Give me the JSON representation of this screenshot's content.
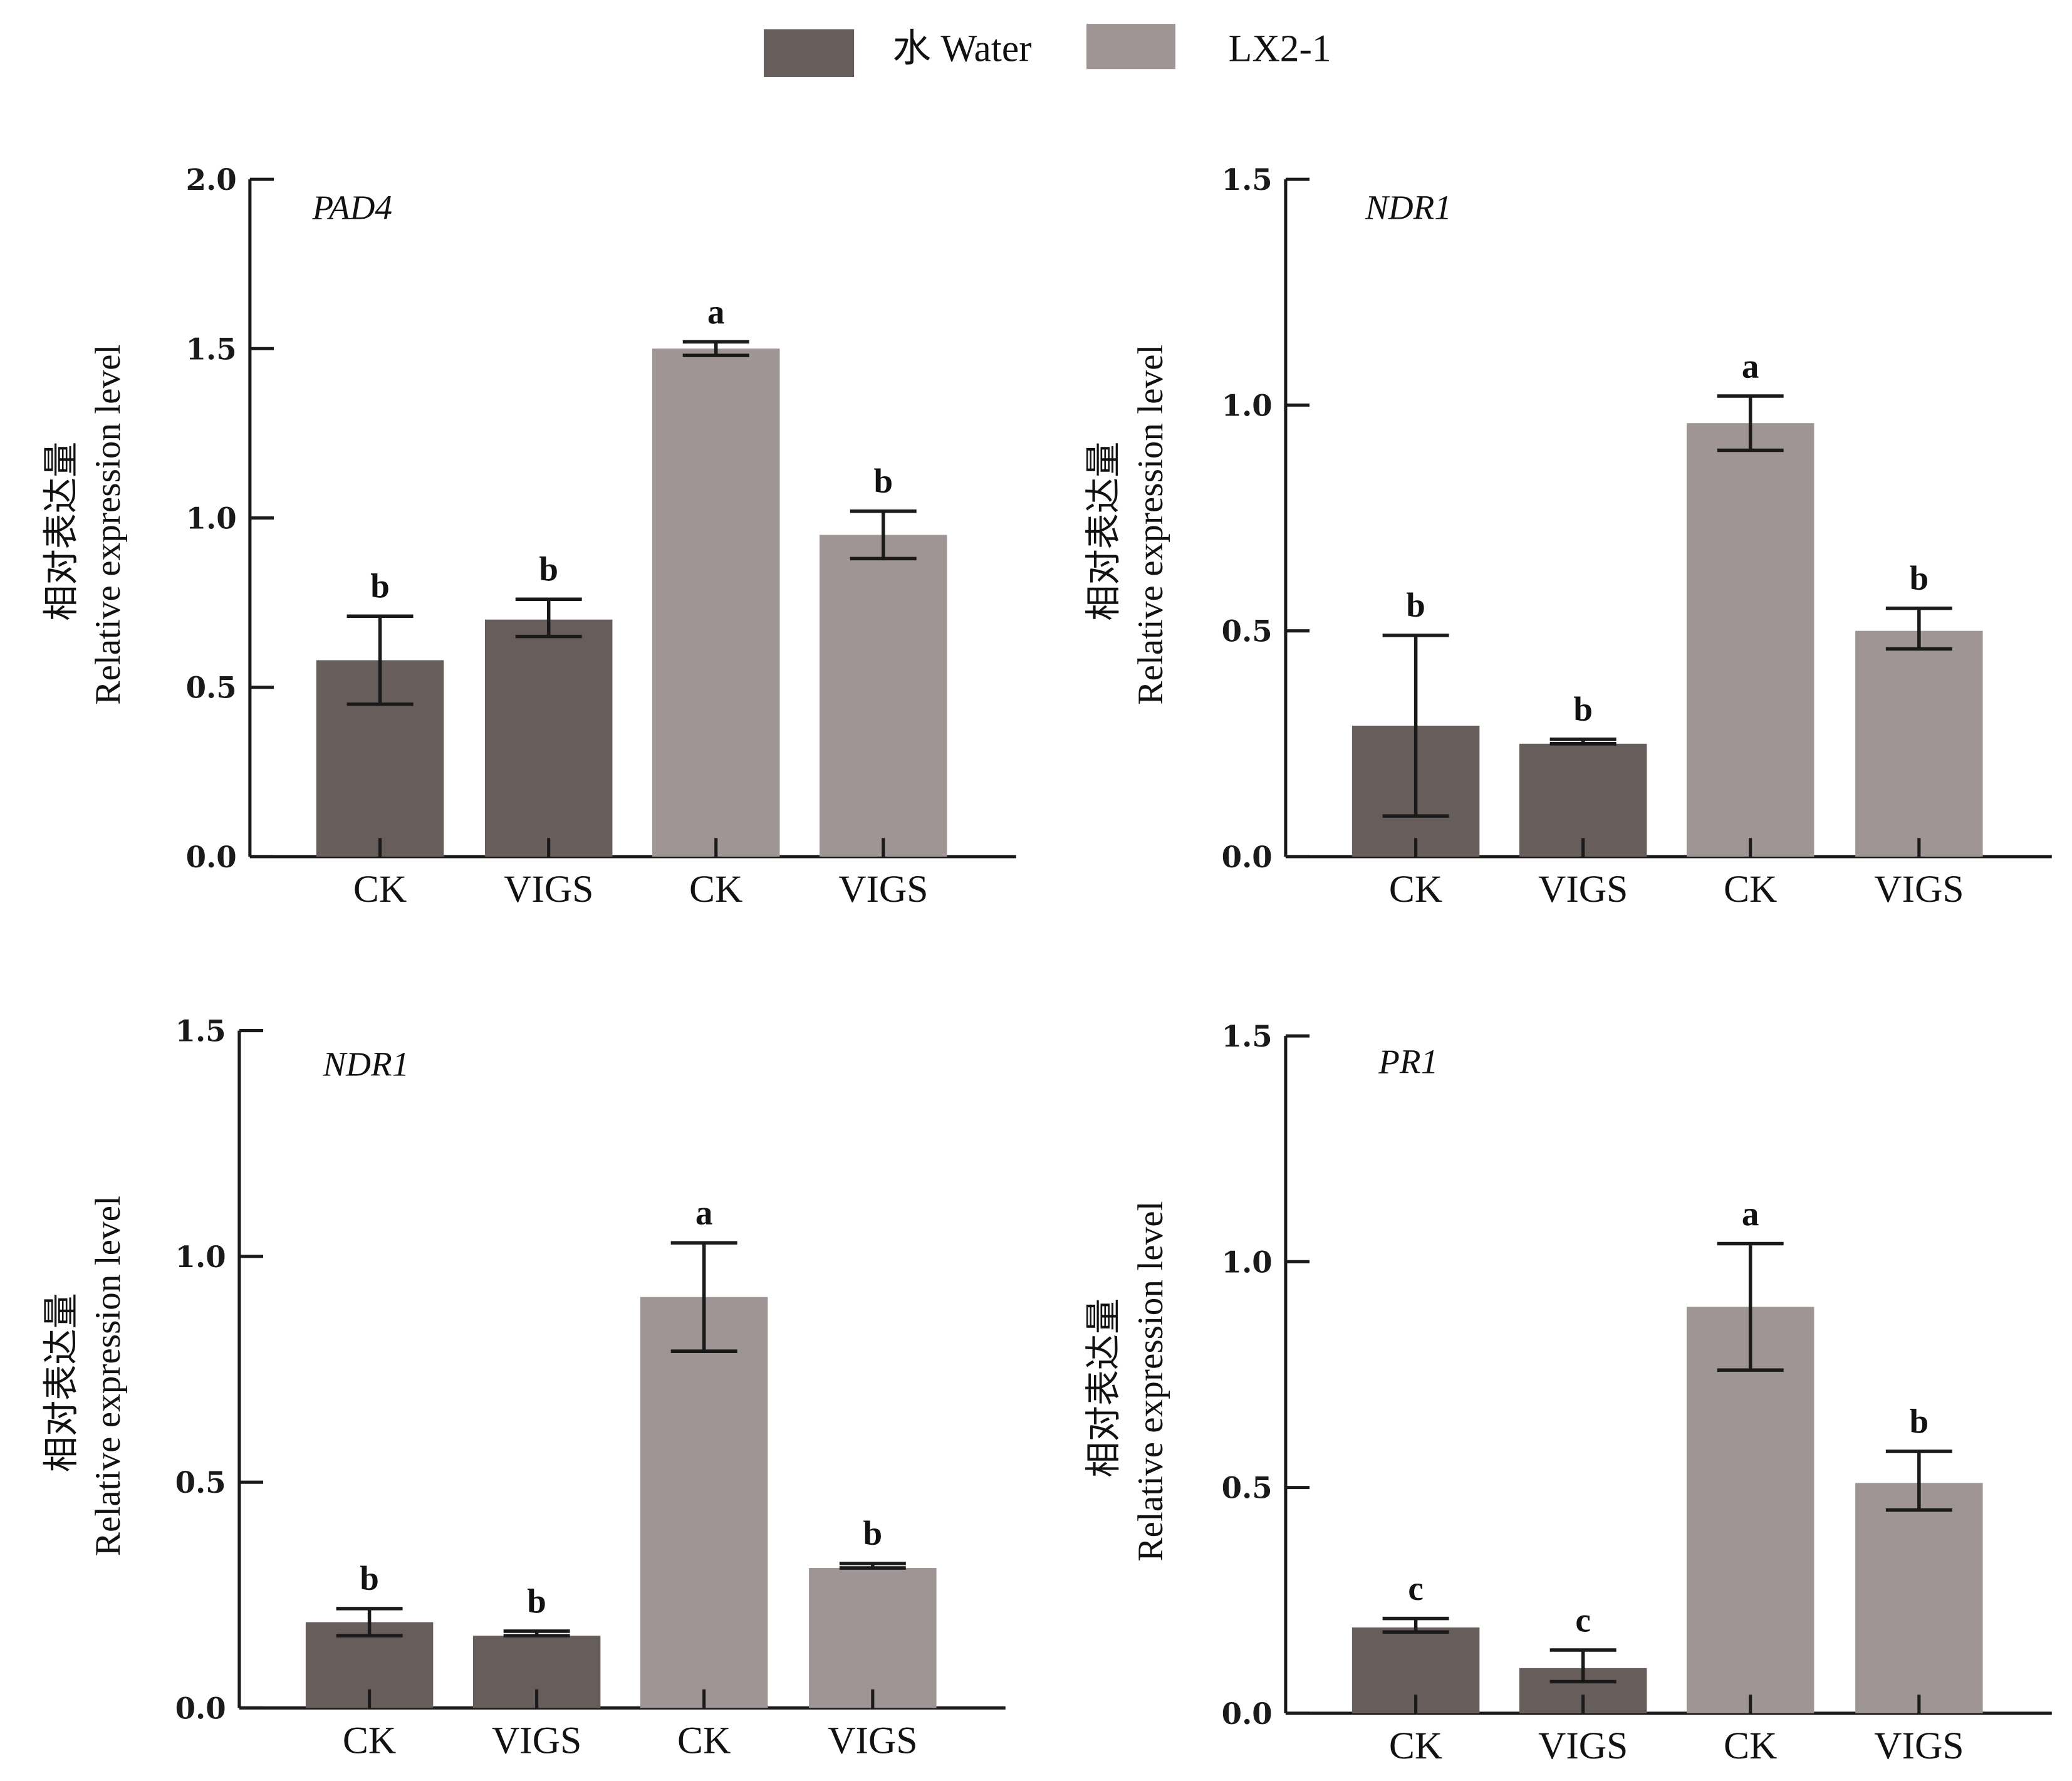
{
  "legend": [
    {
      "label": "水 Water",
      "color": "#675d5a"
    },
    {
      "label": "LX2-1",
      "color": "#9e9594"
    }
  ],
  "chart_data": [
    {
      "type": "bar",
      "title": "PAD4",
      "ylabel_cn": "相对表达量",
      "ylabel": "Relative expression level",
      "xlabel": "",
      "categories": [
        "CK",
        "VIGS",
        "CK",
        "VIGS"
      ],
      "groups": [
        "水 Water",
        "水 Water",
        "LX2-1",
        "LX2-1"
      ],
      "values": [
        0.58,
        0.7,
        1.5,
        0.95
      ],
      "error_low": [
        0.45,
        0.65,
        1.48,
        0.88
      ],
      "error_high": [
        0.71,
        0.76,
        1.52,
        1.02
      ],
      "significance": [
        "b",
        "b",
        "a",
        "b"
      ],
      "ylim": [
        0,
        2.0
      ],
      "yticks": [
        "0.0",
        "0.5",
        "1.0",
        "1.5",
        "2.0"
      ],
      "grid": false
    },
    {
      "type": "bar",
      "title": "NDR1",
      "ylabel_cn": "相对表达量",
      "ylabel": "Relative expression level",
      "xlabel": "",
      "categories": [
        "CK",
        "VIGS",
        "CK",
        "VIGS"
      ],
      "groups": [
        "水 Water",
        "水 Water",
        "LX2-1",
        "LX2-1"
      ],
      "values": [
        0.29,
        0.25,
        0.96,
        0.5
      ],
      "error_low": [
        0.09,
        0.25,
        0.9,
        0.46
      ],
      "error_high": [
        0.49,
        0.26,
        1.02,
        0.55
      ],
      "significance": [
        "b",
        "b",
        "a",
        "b"
      ],
      "ylim": [
        0,
        1.5
      ],
      "yticks": [
        "0.0",
        "0.5",
        "1.0",
        "1.5"
      ],
      "grid": false
    },
    {
      "type": "bar",
      "title": "NDR1",
      "ylabel_cn": "相对表达量",
      "ylabel": "Relative expression level",
      "xlabel": "",
      "categories": [
        "CK",
        "VIGS",
        "CK",
        "VIGS"
      ],
      "groups": [
        "水 Water",
        "水 Water",
        "LX2-1",
        "LX2-1"
      ],
      "values": [
        0.19,
        0.16,
        0.91,
        0.31
      ],
      "error_low": [
        0.16,
        0.16,
        0.79,
        0.31
      ],
      "error_high": [
        0.22,
        0.17,
        1.03,
        0.32
      ],
      "significance": [
        "b",
        "b",
        "a",
        "b"
      ],
      "ylim": [
        0,
        1.5
      ],
      "yticks": [
        "0.0",
        "0.5",
        "1.0",
        "1.5"
      ],
      "grid": false
    },
    {
      "type": "bar",
      "title": "PR1",
      "ylabel_cn": "相对表达量",
      "ylabel": "Relative expression level",
      "xlabel": "",
      "categories": [
        "CK",
        "VIGS",
        "CK",
        "VIGS"
      ],
      "groups": [
        "水 Water",
        "水 Water",
        "LX2-1",
        "LX2-1"
      ],
      "values": [
        0.19,
        0.1,
        0.9,
        0.51
      ],
      "error_low": [
        0.18,
        0.07,
        0.76,
        0.45
      ],
      "error_high": [
        0.21,
        0.14,
        1.04,
        0.58
      ],
      "significance": [
        "c",
        "c",
        "a",
        "b"
      ],
      "ylim": [
        0,
        1.5
      ],
      "yticks": [
        "0.0",
        "0.5",
        "1.0",
        "1.5"
      ],
      "grid": false
    }
  ]
}
